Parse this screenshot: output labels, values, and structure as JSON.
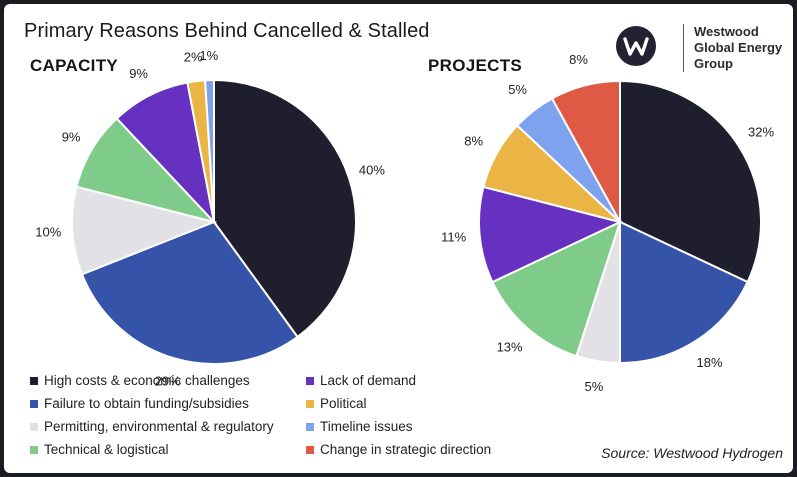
{
  "title": "Primary Reasons Behind Cancelled & Stalled",
  "logo": {
    "line1": "Westwood",
    "line2": "Global Energy",
    "line3": "Group",
    "icon": "westwood-w-icon"
  },
  "source": "Source: Westwood Hydrogen",
  "colors": {
    "high_costs": "#1f1e2e",
    "funding": "#3553a8",
    "permitting": "#e2e2e6",
    "technical": "#7ecb8a",
    "demand": "#6630c0",
    "political": "#eab545",
    "timeline": "#7ea2ee",
    "strategic": "#de5a45"
  },
  "legend": [
    {
      "label": "High costs & economic challenges",
      "color": "#1f1e2e"
    },
    {
      "label": "Failure to obtain funding/subsidies",
      "color": "#3553a8"
    },
    {
      "label": "Permitting, environmental & regulatory",
      "color": "#e2e2e6"
    },
    {
      "label": "Technical & logistical",
      "color": "#7ecb8a"
    },
    {
      "label": "Lack of demand",
      "color": "#6630c0"
    },
    {
      "label": "Political",
      "color": "#eab545"
    },
    {
      "label": "Timeline issues",
      "color": "#7ea2ee"
    },
    {
      "label": "Change in strategic direction",
      "color": "#de5a45"
    }
  ],
  "chart_data": [
    {
      "type": "pie",
      "title": "CAPACITY",
      "categories": [
        "High costs & economic challenges",
        "Failure to obtain funding/subsidies",
        "Permitting, environmental & regulatory",
        "Technical & logistical",
        "Lack of demand",
        "Political",
        "Timeline issues"
      ],
      "values": [
        40,
        29,
        10,
        9,
        9,
        2,
        1
      ],
      "labels": [
        "40%",
        "29%",
        "10%",
        "9%",
        "9%",
        "2%",
        "1%"
      ],
      "colors": [
        "#1f1e2e",
        "#3553a8",
        "#e2e2e6",
        "#7ecb8a",
        "#6630c0",
        "#eab545",
        "#7ea2ee"
      ]
    },
    {
      "type": "pie",
      "title": "PROJECTS",
      "categories": [
        "High costs & economic challenges",
        "Failure to obtain funding/subsidies",
        "Permitting, environmental & regulatory",
        "Technical & logistical",
        "Lack of demand",
        "Political",
        "Timeline issues",
        "Change in strategic direction"
      ],
      "values": [
        32,
        18,
        5,
        13,
        11,
        8,
        5,
        8
      ],
      "labels": [
        "32%",
        "18%",
        "5%",
        "13%",
        "11%",
        "8%",
        "5%",
        "8%"
      ],
      "colors": [
        "#1f1e2e",
        "#3553a8",
        "#e2e2e6",
        "#7ecb8a",
        "#6630c0",
        "#eab545",
        "#7ea2ee",
        "#de5a45"
      ]
    }
  ]
}
